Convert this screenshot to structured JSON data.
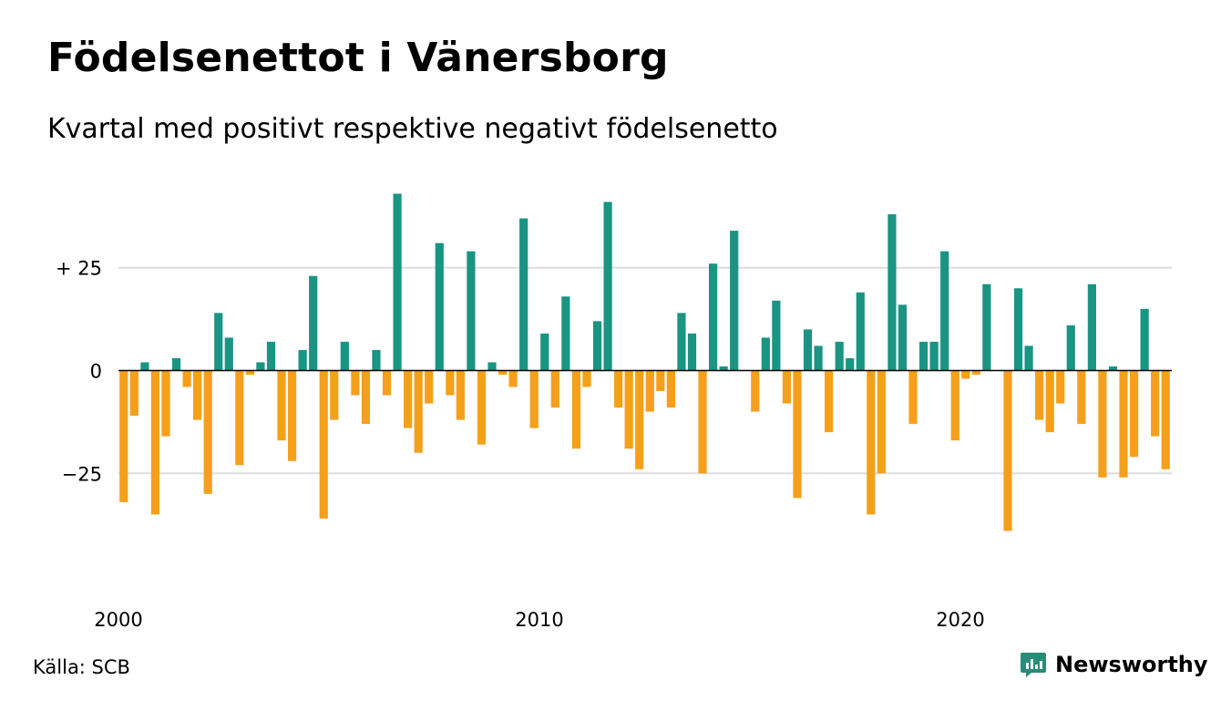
{
  "title": "Födelsenettot i Vänersborg",
  "subtitle": "Kvartal med positivt respektive negativt födelsenetto",
  "source": "Källa: SCB",
  "brand": {
    "name": "Newsworthy",
    "icon": "newsworthy-logo-icon"
  },
  "colors": {
    "positive": "#1a9483",
    "negative": "#f5a01a",
    "grid": "#dddddd",
    "zero_line": "#000000",
    "brand": "#2a8b78",
    "text": "#000000"
  },
  "chart_data": {
    "type": "bar",
    "title": "Födelsenettot i Vänersborg",
    "subtitle": "Kvartal med positivt respektive negativt födelsenetto",
    "xlabel": "",
    "ylabel": "",
    "x_tick_labels": [
      "2000",
      "2010",
      "2020"
    ],
    "x_tick_years": [
      2000,
      2010,
      2020
    ],
    "start_year": 2000,
    "start_quarter": 1,
    "y_ticks": [
      {
        "value": 25,
        "label": "+ 25"
      },
      {
        "value": 0,
        "label": "0"
      },
      {
        "value": -25,
        "label": "−25"
      }
    ],
    "ylim": [
      -46,
      44
    ],
    "grid": true,
    "values": [
      -32,
      -11,
      2,
      -35,
      -16,
      3,
      -4,
      -12,
      -30,
      14,
      8,
      -23,
      -1,
      2,
      7,
      -17,
      -22,
      5,
      23,
      -36,
      -12,
      7,
      -6,
      -13,
      5,
      -6,
      43,
      -14,
      -20,
      -8,
      31,
      -6,
      -12,
      29,
      -18,
      2,
      -1,
      -4,
      37,
      -14,
      9,
      -9,
      18,
      -19,
      -4,
      12,
      41,
      -9,
      -19,
      -24,
      -10,
      -5,
      -9,
      14,
      9,
      -25,
      26,
      1,
      34,
      0,
      -10,
      8,
      17,
      -8,
      -31,
      10,
      6,
      -15,
      7,
      3,
      19,
      -35,
      -25,
      38,
      16,
      -13,
      7,
      7,
      29,
      -17,
      -2,
      -1,
      21,
      0,
      -39,
      20,
      6,
      -12,
      -15,
      -8,
      11,
      -13,
      21,
      -26,
      1,
      -26,
      -21,
      15,
      -16,
      -24
    ]
  }
}
